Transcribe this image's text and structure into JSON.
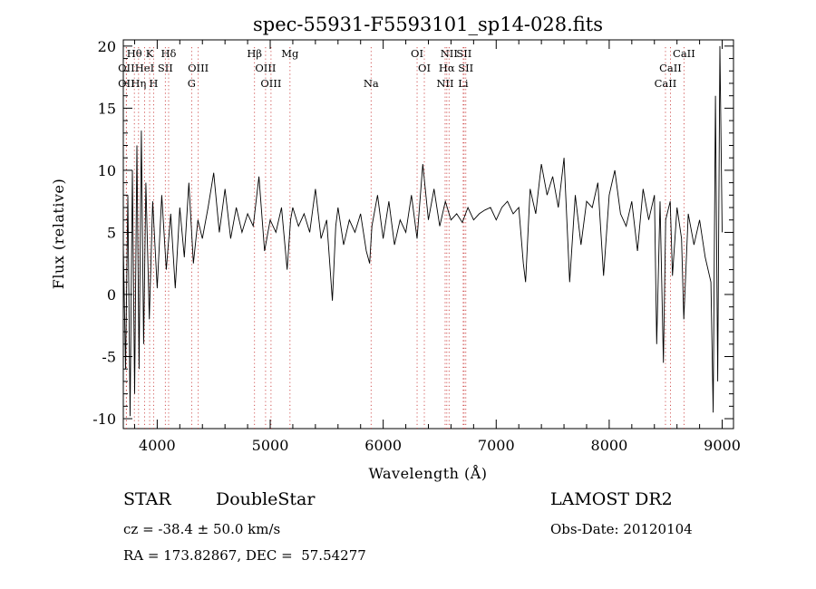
{
  "chart_data": {
    "type": "line",
    "title": "spec-55931-F5593101_sp14-028.fits",
    "xlabel": "Wavelength (Å)",
    "ylabel": "Flux (relative)",
    "xlim": [
      3700,
      9100
    ],
    "ylim": [
      -10.8,
      20.5
    ],
    "xticks": [
      4000,
      5000,
      6000,
      7000,
      8000,
      9000
    ],
    "yticks": [
      -10,
      -5,
      0,
      5,
      10,
      15,
      20
    ],
    "grid": false,
    "series": [
      {
        "x": [
          3700,
          3720,
          3740,
          3760,
          3780,
          3800,
          3820,
          3840,
          3860,
          3880,
          3900,
          3930,
          3960,
          4000,
          4040,
          4080,
          4120,
          4160,
          4200,
          4240,
          4280,
          4320,
          4360,
          4400,
          4450,
          4500,
          4550,
          4600,
          4650,
          4700,
          4750,
          4800,
          4850,
          4900,
          4950,
          5000,
          5050,
          5100,
          5150,
          5180,
          5200,
          5250,
          5300,
          5350,
          5400,
          5450,
          5500,
          5550,
          5580,
          5600,
          5650,
          5700,
          5750,
          5800,
          5850,
          5880,
          5900,
          5950,
          6000,
          6050,
          6100,
          6150,
          6200,
          6250,
          6300,
          6350,
          6400,
          6450,
          6500,
          6550,
          6600,
          6650,
          6700,
          6750,
          6800,
          6850,
          6900,
          6950,
          7000,
          7050,
          7100,
          7150,
          7200,
          7240,
          7260,
          7300,
          7350,
          7400,
          7450,
          7500,
          7550,
          7600,
          7650,
          7700,
          7750,
          7800,
          7850,
          7900,
          7950,
          8000,
          8050,
          8100,
          8150,
          8200,
          8250,
          8300,
          8350,
          8400,
          8420,
          8450,
          8480,
          8500,
          8540,
          8560,
          8600,
          8640,
          8660,
          8700,
          8750,
          8800,
          8850,
          8900,
          8920,
          8940,
          8960,
          8980,
          9000
        ],
        "y": [
          4.0,
          -6.0,
          8.0,
          -9.8,
          10.0,
          -8.0,
          12.0,
          -6.0,
          13.2,
          -4.0,
          9.0,
          -2.0,
          7.5,
          0.5,
          8.0,
          2.0,
          6.5,
          0.5,
          7.0,
          3.0,
          9.0,
          2.5,
          6.0,
          4.5,
          7.0,
          9.8,
          5.0,
          8.5,
          4.5,
          7.0,
          5.0,
          6.5,
          5.5,
          9.5,
          3.5,
          6.0,
          5.0,
          7.0,
          2.0,
          6.0,
          7.0,
          5.5,
          6.5,
          5.0,
          8.5,
          4.5,
          6.0,
          -0.5,
          5.5,
          7.0,
          4.0,
          6.0,
          5.0,
          6.5,
          3.5,
          2.5,
          5.5,
          8.0,
          4.5,
          7.5,
          4.0,
          6.0,
          5.0,
          8.0,
          4.5,
          10.5,
          6.0,
          8.5,
          5.5,
          7.5,
          6.0,
          6.5,
          5.8,
          7.0,
          6.0,
          6.5,
          6.8,
          7.0,
          6.0,
          7.0,
          7.5,
          6.5,
          7.0,
          2.5,
          1.0,
          8.5,
          6.5,
          10.5,
          8.0,
          9.5,
          7.0,
          11.0,
          1.0,
          8.0,
          4.0,
          7.5,
          7.0,
          9.0,
          1.5,
          8.0,
          10.0,
          6.5,
          5.5,
          7.5,
          3.5,
          8.5,
          6.0,
          8.0,
          -4.0,
          7.5,
          -5.5,
          6.0,
          7.5,
          1.5,
          7.0,
          4.5,
          -2.0,
          6.5,
          4.0,
          6.0,
          3.0,
          1.0,
          -9.5,
          16.0,
          -7.0,
          20.0,
          5.0
        ]
      }
    ],
    "lines_top": [
      {
        "label": "Hθ",
        "x": 3798
      },
      {
        "label": "K",
        "x": 3933
      },
      {
        "label": "Hδ",
        "x": 4101
      },
      {
        "label": "Hβ",
        "x": 4861
      },
      {
        "label": "Mg",
        "x": 5175
      },
      {
        "label": "OI",
        "x": 6300
      },
      {
        "label": "NII",
        "x": 6583
      },
      {
        "label": "SII",
        "x": 6716
      },
      {
        "label": "CaII",
        "x": 8662
      }
    ],
    "lines_mid": [
      {
        "label": "OII",
        "x": 3727
      },
      {
        "label": "HeI",
        "x": 3888
      },
      {
        "label": "SII",
        "x": 4072
      },
      {
        "label": "OIII",
        "x": 4363
      },
      {
        "label": "OIII",
        "x": 4959
      },
      {
        "label": "OI",
        "x": 6364
      },
      {
        "label": "Hα",
        "x": 6563
      },
      {
        "label": "SII",
        "x": 6731
      },
      {
        "label": "CaII",
        "x": 8542
      }
    ],
    "lines_low": [
      {
        "label": "OII",
        "x": 3727
      },
      {
        "label": "Hη",
        "x": 3835
      },
      {
        "label": "H",
        "x": 3968
      },
      {
        "label": "G",
        "x": 4305
      },
      {
        "label": "OIII",
        "x": 5007
      },
      {
        "label": "Na",
        "x": 5893
      },
      {
        "label": "NII",
        "x": 6548
      },
      {
        "label": "Li",
        "x": 6708
      },
      {
        "label": "CaII",
        "x": 8498
      }
    ]
  },
  "info": {
    "object_class": "STAR",
    "subclass": "DoubleStar",
    "survey": "LAMOST DR2",
    "redshift": "cz = -38.4 ± 50.0 km/s",
    "obs_date": "Obs-Date: 20120104",
    "coords": "RA = 173.82867, DEC =  57.54277"
  }
}
